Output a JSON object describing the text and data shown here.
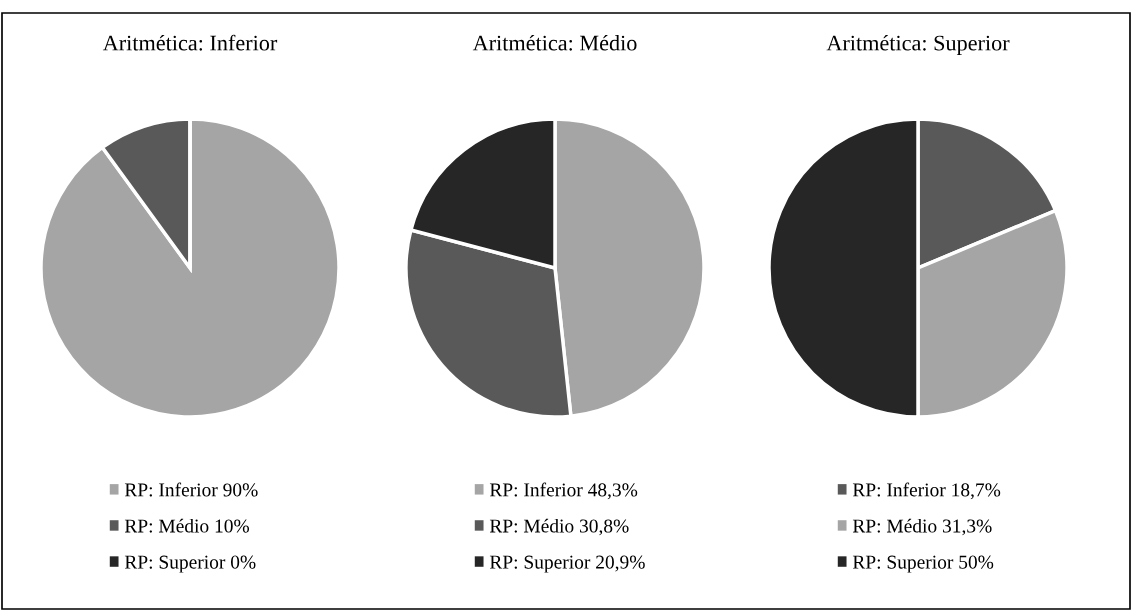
{
  "chart_data": [
    {
      "type": "pie",
      "title": "Aritmética: Inferior",
      "categories": [
        "RP: Inferior",
        "RP: Médio",
        "RP: Superior"
      ],
      "values": [
        90,
        10,
        0
      ],
      "value_labels": [
        "90%",
        "10%",
        "0%"
      ],
      "colors": [
        "#a5a5a5",
        "#595959",
        "#262626"
      ],
      "legend": "bottom"
    },
    {
      "type": "pie",
      "title": "Aritmética: Médio",
      "categories": [
        "RP: Inferior",
        "RP: Médio",
        "RP: Superior"
      ],
      "values": [
        48.3,
        30.8,
        20.9
      ],
      "value_labels": [
        "48,3%",
        "30,8%",
        "20,9%"
      ],
      "colors": [
        "#a5a5a5",
        "#595959",
        "#262626"
      ],
      "legend": "bottom"
    },
    {
      "type": "pie",
      "title": "Aritmética: Superior",
      "categories": [
        "RP: Inferior",
        "RP: Médio",
        "RP: Superior"
      ],
      "values": [
        18.7,
        31.3,
        50
      ],
      "value_labels": [
        "18,7%",
        "31,3%",
        "50%"
      ],
      "colors": [
        "#595959",
        "#a5a5a5",
        "#262626"
      ],
      "legend": "bottom"
    }
  ]
}
